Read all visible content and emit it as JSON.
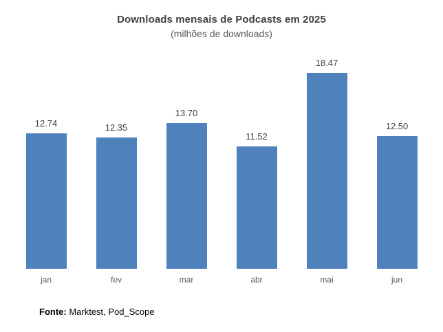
{
  "header": {
    "title": "Downloads mensais de Podcasts em 2025",
    "subtitle": "(milhões de downloads)"
  },
  "footer": {
    "label": "Fonte:",
    "text": " Marktest, Pod_Scope"
  },
  "colors": {
    "bar": "#4F81BD",
    "title_text": "#404040",
    "axis_label_text": "#595959",
    "background": "#FFFFFF"
  },
  "chart_data": {
    "type": "bar",
    "categories": [
      "jan",
      "fev",
      "mar",
      "abr",
      "mai",
      "jun"
    ],
    "values": [
      12.74,
      12.35,
      13.7,
      11.52,
      18.47,
      12.5
    ],
    "data_labels": [
      "12.74",
      "12.35",
      "13.70",
      "11.52",
      "18.47",
      "12.50"
    ],
    "title": "Downloads mensais de Podcasts em 2025",
    "subtitle": "(milhões de downloads)",
    "xlabel": "",
    "ylabel": "",
    "ylim": [
      0,
      20
    ],
    "grid": false,
    "legend": false,
    "source": "Fonte: Marktest, Pod_Scope"
  }
}
